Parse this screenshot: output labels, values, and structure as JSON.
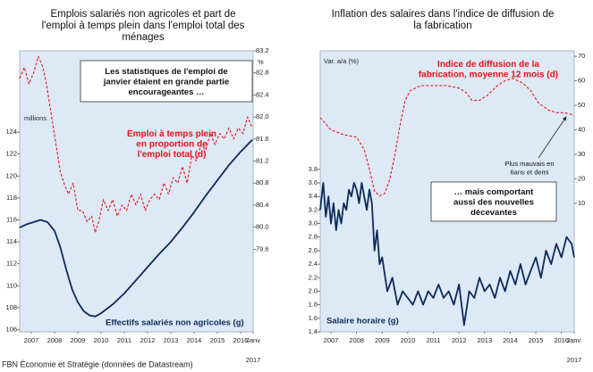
{
  "chart_data": [
    {
      "type": "line",
      "title": "Emplois salariés non agricoles et part de\nl'emploi à temps plein dans l'emploi total des\nménages",
      "ylabel": "millions",
      "y2label": "%",
      "annotations": [
        "Les statistiques de l'emploi de\njanvier étaient en grande partie\nencourageantes …"
      ],
      "xlim": [
        2007.0,
        2017.04
      ],
      "xticks": [
        {
          "value": 2007.5,
          "label": "2007"
        },
        {
          "value": 2008.5,
          "label": "2008"
        },
        {
          "value": 2009.5,
          "label": "2009"
        },
        {
          "value": 2010.5,
          "label": "2010"
        },
        {
          "value": 2011.5,
          "label": "2011"
        },
        {
          "value": 2012.5,
          "label": "2012"
        },
        {
          "value": 2013.5,
          "label": "2013"
        },
        {
          "value": 2014.5,
          "label": "2014"
        },
        {
          "value": 2015.5,
          "label": "2015"
        },
        {
          "value": 2016.5,
          "label": "2016"
        },
        {
          "value": 2017.04,
          "label": "Janv\n2017"
        }
      ],
      "ylim": [
        105.8,
        131.4
      ],
      "yticks": [
        106,
        108,
        110,
        112,
        114,
        116,
        118,
        120,
        122,
        124
      ],
      "y2lim": [
        78.1,
        83.2
      ],
      "y2ticks": [
        79.6,
        {
          "value": 80,
          "label": "80.0"
        },
        80.4,
        80.8,
        81.2,
        81.6,
        {
          "value": 82,
          "label": "82.0"
        },
        82.4,
        82.8,
        83.2
      ],
      "background": "#dde9f5",
      "series": [
        {
          "name": "Emploi à temps plein\nen proportion de\nl'emploi total (d)",
          "color": "#e8141a",
          "dashed": true,
          "axis": "y2",
          "x": [
            2007.0,
            2007.2,
            2007.4,
            2007.6,
            2007.8,
            2008.0,
            2008.15,
            2008.3,
            2008.45,
            2008.6,
            2008.75,
            2008.9,
            2009.1,
            2009.3,
            2009.5,
            2009.7,
            2009.9,
            2010.1,
            2010.25,
            2010.4,
            2010.6,
            2010.8,
            2011.0,
            2011.2,
            2011.4,
            2011.6,
            2011.8,
            2012.0,
            2012.2,
            2012.4,
            2012.6,
            2012.8,
            2013.0,
            2013.2,
            2013.4,
            2013.6,
            2013.8,
            2014.0,
            2014.2,
            2014.4,
            2014.6,
            2014.8,
            2015.0,
            2015.2,
            2015.4,
            2015.6,
            2015.8,
            2016.0,
            2016.2,
            2016.4,
            2016.6,
            2016.8,
            2017.0
          ],
          "values": [
            82.7,
            82.9,
            82.6,
            82.8,
            83.1,
            82.9,
            82.6,
            82.2,
            81.8,
            81.4,
            81.0,
            80.8,
            80.6,
            80.8,
            80.3,
            80.3,
            80.1,
            80.2,
            79.9,
            80.1,
            80.5,
            80.3,
            80.5,
            80.2,
            80.4,
            80.3,
            80.6,
            80.4,
            80.6,
            80.3,
            80.5,
            80.6,
            80.5,
            80.8,
            80.6,
            80.9,
            80.8,
            81.1,
            80.8,
            81.3,
            81.2,
            81.5,
            81.4,
            81.7,
            81.5,
            81.7,
            81.6,
            81.8,
            81.6,
            81.8,
            81.7,
            82.0,
            81.8
          ]
        },
        {
          "name": "Effectifs salariés non agricoles (g)",
          "color": "#0d2a5a",
          "dashed": false,
          "axis": "y",
          "x": [
            2007.0,
            2007.3,
            2007.6,
            2007.9,
            2008.2,
            2008.5,
            2008.75,
            2009.0,
            2009.25,
            2009.5,
            2009.75,
            2010.0,
            2010.25,
            2010.5,
            2011.0,
            2011.5,
            2012.0,
            2012.5,
            2013.0,
            2013.5,
            2014.0,
            2014.5,
            2015.0,
            2015.5,
            2016.0,
            2016.5,
            2017.0
          ],
          "values": [
            115.3,
            115.6,
            115.8,
            116.0,
            115.8,
            115.0,
            113.5,
            111.5,
            109.7,
            108.5,
            107.7,
            107.3,
            107.2,
            107.5,
            108.3,
            109.3,
            110.5,
            111.7,
            112.9,
            114.0,
            115.3,
            116.7,
            118.2,
            119.6,
            121.0,
            122.2,
            123.3
          ]
        }
      ]
    },
    {
      "type": "line",
      "title": "Inflation des salaires dans l'indice de diffusion de\nla fabrication",
      "ylabel": "Var. a/a (%)",
      "annotations": [
        "… mais comportant\naussi des nouvelles\ndécevantes",
        "Plus mauvais en\n6ans et demi"
      ],
      "xlim": [
        2007.08,
        2017.0
      ],
      "xticks": [
        {
          "value": 2007.5,
          "label": "2007"
        },
        {
          "value": 2008.5,
          "label": "2008"
        },
        {
          "value": 2009.5,
          "label": "2009"
        },
        {
          "value": 2010.5,
          "label": "2010"
        },
        {
          "value": 2011.5,
          "label": "2011"
        },
        {
          "value": 2012.5,
          "label": "2012"
        },
        {
          "value": 2013.5,
          "label": "2013"
        },
        {
          "value": 2014.5,
          "label": "2014"
        },
        {
          "value": 2015.5,
          "label": "2015"
        },
        {
          "value": 2016.5,
          "label": "2016"
        },
        {
          "value": 2017.0,
          "label": "Janv.\n2017"
        }
      ],
      "ylim": [
        1.4,
        5.55
      ],
      "yticks": [
        1.4,
        1.6,
        1.8,
        {
          "value": 2,
          "label": "2.0"
        },
        2.2,
        2.4,
        2.6,
        2.8,
        {
          "value": 3,
          "label": "3.0"
        },
        3.2,
        3.4,
        3.6,
        3.8
      ],
      "y2lim": [
        -42.4,
        72.2
      ],
      "y2ticks": [
        10,
        20,
        30,
        40,
        50,
        60,
        70
      ],
      "background": "#dde9f5",
      "series": [
        {
          "name": "Indice de diffusion de la\nfabrication, moyenne 12 mois (d)",
          "color": "#e8141a",
          "dashed": true,
          "axis": "y2",
          "x": [
            2007.08,
            2007.5,
            2008.0,
            2008.5,
            2008.8,
            2009.0,
            2009.2,
            2009.4,
            2009.6,
            2009.8,
            2010.0,
            2010.2,
            2010.4,
            2010.6,
            2010.8,
            2011.0,
            2011.5,
            2012.0,
            2012.5,
            2012.8,
            2013.0,
            2013.3,
            2013.6,
            2014.0,
            2014.3,
            2014.6,
            2015.0,
            2015.3,
            2015.6,
            2016.0,
            2016.3,
            2016.6,
            2017.0
          ],
          "values": [
            45,
            40,
            38,
            37,
            32,
            24,
            15,
            13,
            14,
            20,
            30,
            42,
            52,
            56,
            57,
            58,
            58,
            58,
            57,
            55,
            52,
            52,
            54,
            58,
            60,
            61,
            59,
            56,
            51,
            48,
            47,
            47,
            46
          ]
        },
        {
          "name": "Salaire horaire (g)",
          "color": "#0d2a5a",
          "dashed": false,
          "axis": "y",
          "x": [
            2007.08,
            2007.2,
            2007.3,
            2007.4,
            2007.5,
            2007.6,
            2007.7,
            2007.8,
            2007.9,
            2008.0,
            2008.1,
            2008.2,
            2008.3,
            2008.4,
            2008.5,
            2008.6,
            2008.7,
            2008.8,
            2008.9,
            2009.0,
            2009.1,
            2009.2,
            2009.3,
            2009.4,
            2009.5,
            2009.7,
            2009.9,
            2010.1,
            2010.3,
            2010.5,
            2010.7,
            2010.9,
            2011.1,
            2011.3,
            2011.5,
            2011.7,
            2011.9,
            2012.1,
            2012.3,
            2012.5,
            2012.7,
            2012.9,
            2013.1,
            2013.3,
            2013.5,
            2013.7,
            2013.9,
            2014.1,
            2014.3,
            2014.5,
            2014.7,
            2014.9,
            2015.1,
            2015.3,
            2015.5,
            2015.7,
            2015.9,
            2016.1,
            2016.3,
            2016.5,
            2016.7,
            2016.9,
            2017.0
          ],
          "values": [
            3.2,
            3.6,
            3.1,
            3.4,
            3.0,
            3.3,
            2.9,
            3.2,
            3.0,
            3.3,
            3.2,
            3.5,
            3.4,
            3.6,
            3.5,
            3.3,
            3.6,
            3.4,
            3.2,
            3.5,
            3.3,
            2.6,
            2.9,
            2.4,
            2.5,
            2.0,
            2.2,
            1.8,
            2.0,
            1.9,
            1.8,
            2.0,
            1.8,
            2.0,
            1.9,
            2.1,
            1.9,
            2.0,
            1.8,
            2.1,
            1.5,
            2.0,
            1.9,
            2.2,
            2.0,
            2.1,
            1.9,
            2.2,
            2.0,
            2.3,
            2.1,
            2.4,
            2.1,
            2.3,
            2.5,
            2.2,
            2.6,
            2.4,
            2.7,
            2.5,
            2.8,
            2.7,
            2.5
          ]
        }
      ]
    }
  ],
  "source": "FBN Économie et Stratégie (données de Datastream)"
}
